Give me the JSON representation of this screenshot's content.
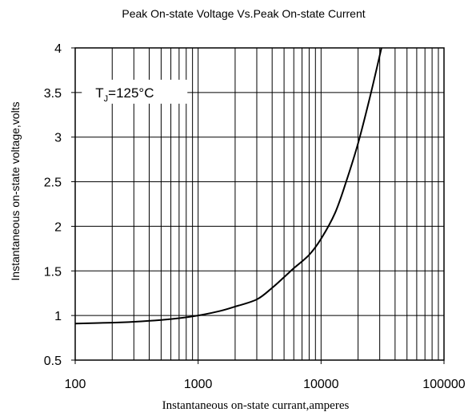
{
  "chart_data": {
    "type": "line",
    "title": "Peak On-state Voltage Vs.Peak On-state Current",
    "xlabel": "Instantaneous on-state currant,amperes",
    "ylabel": "Instantaneous on-state voltage,volts",
    "x_scale": "log",
    "xlim": [
      100,
      100000
    ],
    "ylim": [
      0.5,
      4
    ],
    "x_ticks": [
      "100",
      "1000",
      "10000",
      "100000"
    ],
    "y_ticks": [
      "0.5",
      "1",
      "1.5",
      "2",
      "2.5",
      "3",
      "3.5",
      "4"
    ],
    "grid": true,
    "annotation": {
      "base": "T",
      "sub": "J",
      "rest": "=125°C"
    },
    "series": [
      {
        "x": [
          100,
          200,
          300,
          500,
          700,
          1000,
          1500,
          2000,
          3000,
          4000,
          5000,
          6000,
          8000,
          10000,
          13000,
          16000,
          20000,
          25000,
          31000
        ],
        "y": [
          0.91,
          0.92,
          0.93,
          0.95,
          0.97,
          1.0,
          1.05,
          1.1,
          1.18,
          1.31,
          1.43,
          1.53,
          1.68,
          1.86,
          2.15,
          2.5,
          2.93,
          3.45,
          4.0
        ]
      }
    ]
  }
}
